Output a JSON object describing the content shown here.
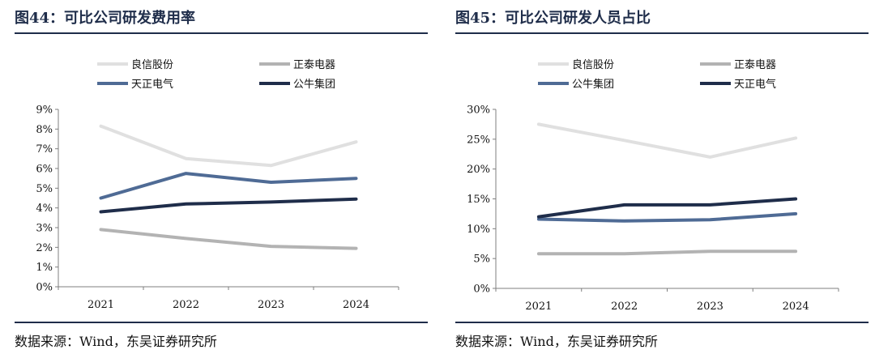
{
  "panels": [
    {
      "title": "图44：可比公司研发费用率",
      "source": "数据来源：Wind，东吴证券研究所"
    },
    {
      "title": "图45：可比公司研发人员占比",
      "source": "数据来源：Wind，东吴证券研究所"
    }
  ],
  "chart_data": [
    {
      "type": "line",
      "title": "图44：可比公司研发费用率",
      "categories": [
        "2021",
        "2022",
        "2023",
        "2024"
      ],
      "ylim": [
        0,
        9
      ],
      "yticks": [
        "0%",
        "1%",
        "2%",
        "3%",
        "4%",
        "5%",
        "6%",
        "7%",
        "8%",
        "9%"
      ],
      "legend_position": "top",
      "grid": false,
      "series": [
        {
          "name": "良信股份",
          "color": "#e0e0e0",
          "values": [
            8.15,
            6.5,
            6.15,
            7.35
          ]
        },
        {
          "name": "正泰电器",
          "color": "#b3b3b3",
          "values": [
            2.9,
            2.45,
            2.05,
            1.95
          ]
        },
        {
          "name": "天正电气",
          "color": "#4f6b95",
          "values": [
            4.5,
            5.75,
            5.3,
            5.5
          ]
        },
        {
          "name": "公牛集团",
          "color": "#1f2d4a",
          "values": [
            3.8,
            4.2,
            4.3,
            4.45
          ]
        }
      ]
    },
    {
      "type": "line",
      "title": "图45：可比公司研发人员占比",
      "categories": [
        "2021",
        "2022",
        "2023",
        "2024"
      ],
      "ylim": [
        0,
        30
      ],
      "yticks": [
        "0%",
        "5%",
        "10%",
        "15%",
        "20%",
        "25%",
        "30%"
      ],
      "legend_position": "top",
      "grid": false,
      "series": [
        {
          "name": "良信股份",
          "color": "#e0e0e0",
          "values": [
            27.5,
            24.8,
            22.0,
            25.2
          ]
        },
        {
          "name": "正泰电器",
          "color": "#b3b3b3",
          "values": [
            5.8,
            5.8,
            6.2,
            6.2
          ]
        },
        {
          "name": "公牛集团",
          "color": "#4f6b95",
          "values": [
            11.6,
            11.3,
            11.5,
            12.5
          ]
        },
        {
          "name": "天正电气",
          "color": "#1f2d4a",
          "values": [
            12.0,
            14.0,
            14.0,
            15.0
          ]
        }
      ]
    }
  ]
}
